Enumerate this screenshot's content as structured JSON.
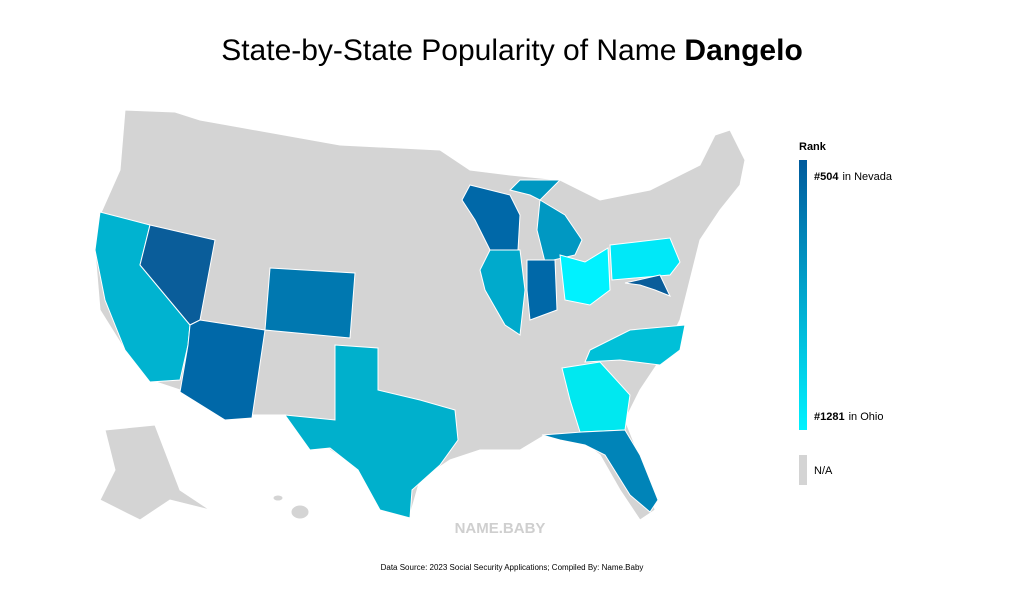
{
  "title": {
    "text": "State-by-State Popularity of Name",
    "name": "Dangelo"
  },
  "legend": {
    "title": "Rank",
    "top": {
      "rank": "#504",
      "label": "in Nevada",
      "color": "#005a9c"
    },
    "bottom": {
      "rank": "#1281",
      "label": "in Ohio",
      "color": "#00f2ff"
    },
    "na": "N/A",
    "na_color": "#d4d4d4"
  },
  "regions": [
    {
      "color": "#00b3d0"
    },
    {
      "color": "#0a5d9a"
    },
    {
      "color": "#0068a8"
    },
    {
      "color": "#0078b0"
    },
    {
      "color": "#00b0cc"
    },
    {
      "color": "#0068a8"
    },
    {
      "color": "#0098c2"
    },
    {
      "color": "#00aacc"
    },
    {
      "color": "#0068a8"
    },
    {
      "color": "#00f2ff"
    },
    {
      "color": "#00e8f8"
    },
    {
      "color": "#0a5d9a"
    },
    {
      "color": "#00c0d8"
    },
    {
      "color": "#00e8f0"
    },
    {
      "color": "#0084b8"
    }
  ],
  "watermark": "NAME.BABY",
  "source": "Data Source: 2023 Social Security Applications; Compiled By: Name.Baby"
}
